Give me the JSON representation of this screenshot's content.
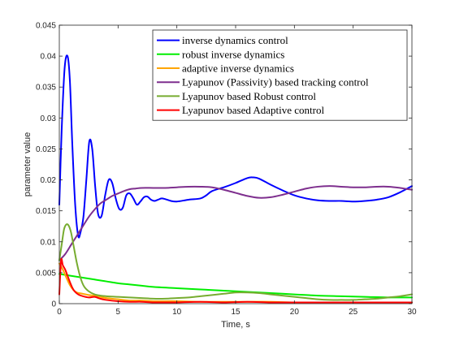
{
  "chart_data": {
    "type": "line",
    "title": "",
    "xlabel": "Time, s",
    "ylabel": "parameter value",
    "xlim": [
      0,
      30
    ],
    "ylim": [
      0,
      0.045
    ],
    "xticks": [
      0,
      5,
      10,
      15,
      20,
      25,
      30
    ],
    "yticks": [
      0,
      0.005,
      0.01,
      0.015,
      0.02,
      0.025,
      0.03,
      0.035,
      0.04,
      0.045
    ],
    "xtick_labels": [
      "0",
      "5",
      "10",
      "15",
      "20",
      "25",
      "30"
    ],
    "ytick_labels": [
      "0",
      "0.005",
      "0.01",
      "0.015",
      "0.02",
      "0.025",
      "0.03",
      "0.035",
      "0.04",
      "0.045"
    ],
    "grid": false,
    "legend_position": "top-right",
    "series": [
      {
        "name": "inverse dynamics control",
        "color": "#0000ff",
        "x": [
          0,
          0.2,
          0.45,
          0.7,
          0.9,
          1.1,
          1.35,
          1.6,
          1.8,
          2.05,
          2.3,
          2.55,
          2.8,
          3.05,
          3.3,
          3.6,
          3.9,
          4.2,
          4.5,
          4.8,
          5.1,
          5.4,
          5.7,
          6.0,
          6.3,
          6.6,
          6.9,
          7.2,
          7.5,
          7.8,
          8.1,
          8.4,
          8.7,
          9.0,
          9.5,
          10,
          11,
          12,
          12.5,
          13,
          14,
          15,
          16,
          16.5,
          17,
          18,
          19,
          20,
          21,
          22,
          23,
          24,
          25,
          26,
          27,
          28,
          29,
          30
        ],
        "y": [
          0.016,
          0.028,
          0.038,
          0.04,
          0.036,
          0.026,
          0.016,
          0.011,
          0.0115,
          0.014,
          0.02,
          0.0262,
          0.025,
          0.019,
          0.0145,
          0.0142,
          0.0175,
          0.02,
          0.0195,
          0.017,
          0.0153,
          0.0155,
          0.0175,
          0.0178,
          0.017,
          0.016,
          0.0165,
          0.0172,
          0.0173,
          0.0168,
          0.0166,
          0.0168,
          0.017,
          0.0169,
          0.0166,
          0.0165,
          0.0168,
          0.017,
          0.0175,
          0.0182,
          0.0188,
          0.0195,
          0.0203,
          0.0204,
          0.0202,
          0.0192,
          0.0183,
          0.0175,
          0.017,
          0.0167,
          0.0166,
          0.0166,
          0.0165,
          0.0166,
          0.0168,
          0.0172,
          0.018,
          0.019
        ]
      },
      {
        "name": "robust inverse dynamics",
        "color": "#00ee00",
        "x": [
          0,
          1,
          2,
          3,
          4,
          5,
          6,
          7,
          8,
          10,
          12,
          14,
          16,
          18,
          20,
          22,
          24,
          26,
          28,
          30
        ],
        "y": [
          0.0048,
          0.0045,
          0.0042,
          0.0039,
          0.0036,
          0.0033,
          0.0031,
          0.0029,
          0.0027,
          0.0025,
          0.0023,
          0.0021,
          0.0019,
          0.0017,
          0.0015,
          0.0013,
          0.0012,
          0.0011,
          0.001,
          0.001
        ]
      },
      {
        "name": "adaptive inverse dynamics",
        "color": "#ffa500",
        "x": [
          0,
          0.3,
          0.6,
          0.9,
          1.2,
          1.5,
          2,
          2.5,
          3,
          3.5,
          4,
          5,
          6,
          7,
          8,
          10,
          12,
          14,
          16,
          18,
          20,
          22,
          24,
          26,
          28,
          30
        ],
        "y": [
          0.0065,
          0.0055,
          0.0042,
          0.003,
          0.0022,
          0.0018,
          0.0016,
          0.0014,
          0.0013,
          0.0011,
          0.0009,
          0.0007,
          0.0005,
          0.0005,
          0.0004,
          0.0004,
          0.0003,
          0.0003,
          0.0003,
          0.0003,
          0.0002,
          0.0002,
          0.0002,
          0.0002,
          0.0002,
          0.0002
        ]
      },
      {
        "name": "Lyapunov (Passivity) based tracking control",
        "color": "#7e2f8e",
        "x": [
          0,
          0.5,
          1,
          1.5,
          2,
          2.5,
          3,
          3.5,
          4,
          4.5,
          5,
          5.5,
          6,
          6.5,
          7,
          8,
          9,
          10,
          11,
          12,
          13,
          14,
          15,
          16,
          17,
          18,
          19,
          20,
          21,
          22,
          23,
          24,
          25,
          26,
          27,
          28,
          29,
          30
        ],
        "y": [
          0.007,
          0.008,
          0.0095,
          0.011,
          0.0125,
          0.014,
          0.0152,
          0.0162,
          0.0168,
          0.0174,
          0.0178,
          0.0182,
          0.0185,
          0.0186,
          0.0187,
          0.0187,
          0.0187,
          0.0188,
          0.0189,
          0.0189,
          0.0188,
          0.0184,
          0.0179,
          0.0174,
          0.0171,
          0.0172,
          0.0176,
          0.0181,
          0.0186,
          0.0189,
          0.019,
          0.0189,
          0.0188,
          0.0188,
          0.0189,
          0.0189,
          0.0187,
          0.0184
        ]
      },
      {
        "name": "Lyapunov based Robust control",
        "color": "#77ac30",
        "x": [
          0,
          0.2,
          0.4,
          0.6,
          0.8,
          1.0,
          1.2,
          1.5,
          1.8,
          2.1,
          2.5,
          3,
          3.5,
          4,
          5,
          6,
          7,
          8,
          9,
          10,
          11,
          12,
          13,
          14,
          15,
          16,
          17,
          18,
          19,
          20,
          21,
          22,
          23,
          24,
          25,
          26,
          27,
          28,
          29,
          30
        ],
        "y": [
          0.007,
          0.0095,
          0.012,
          0.0128,
          0.0126,
          0.0115,
          0.0095,
          0.0065,
          0.0042,
          0.0028,
          0.002,
          0.0015,
          0.0013,
          0.0012,
          0.0011,
          0.001,
          0.0009,
          0.0008,
          0.0008,
          0.0009,
          0.001,
          0.0012,
          0.0014,
          0.0016,
          0.0018,
          0.0018,
          0.0017,
          0.0015,
          0.0013,
          0.0011,
          0.0009,
          0.0007,
          0.0006,
          0.0006,
          0.0006,
          0.0007,
          0.0008,
          0.001,
          0.0012,
          0.0015
        ]
      },
      {
        "name": "Lyapunov based Adaptive control",
        "color": "#ff0000",
        "x": [
          0,
          0.15,
          0.3,
          0.5,
          0.7,
          0.9,
          1.1,
          1.3,
          1.6,
          2,
          2.5,
          3,
          3.5,
          4,
          5,
          6,
          7,
          8,
          9,
          10,
          12,
          14,
          16,
          18,
          20,
          22,
          24,
          26,
          28,
          30
        ],
        "y": [
          0.0015,
          0.007,
          0.0062,
          0.0055,
          0.0045,
          0.0035,
          0.0026,
          0.002,
          0.0015,
          0.0012,
          0.001,
          0.0011,
          0.0008,
          0.0006,
          0.0004,
          0.0003,
          0.0003,
          0.0002,
          0.0002,
          0.0002,
          0.0003,
          0.0002,
          0.0003,
          0.0002,
          0.0002,
          0.0002,
          0.0002,
          0.0002,
          0.0002,
          0.0002
        ]
      }
    ]
  }
}
